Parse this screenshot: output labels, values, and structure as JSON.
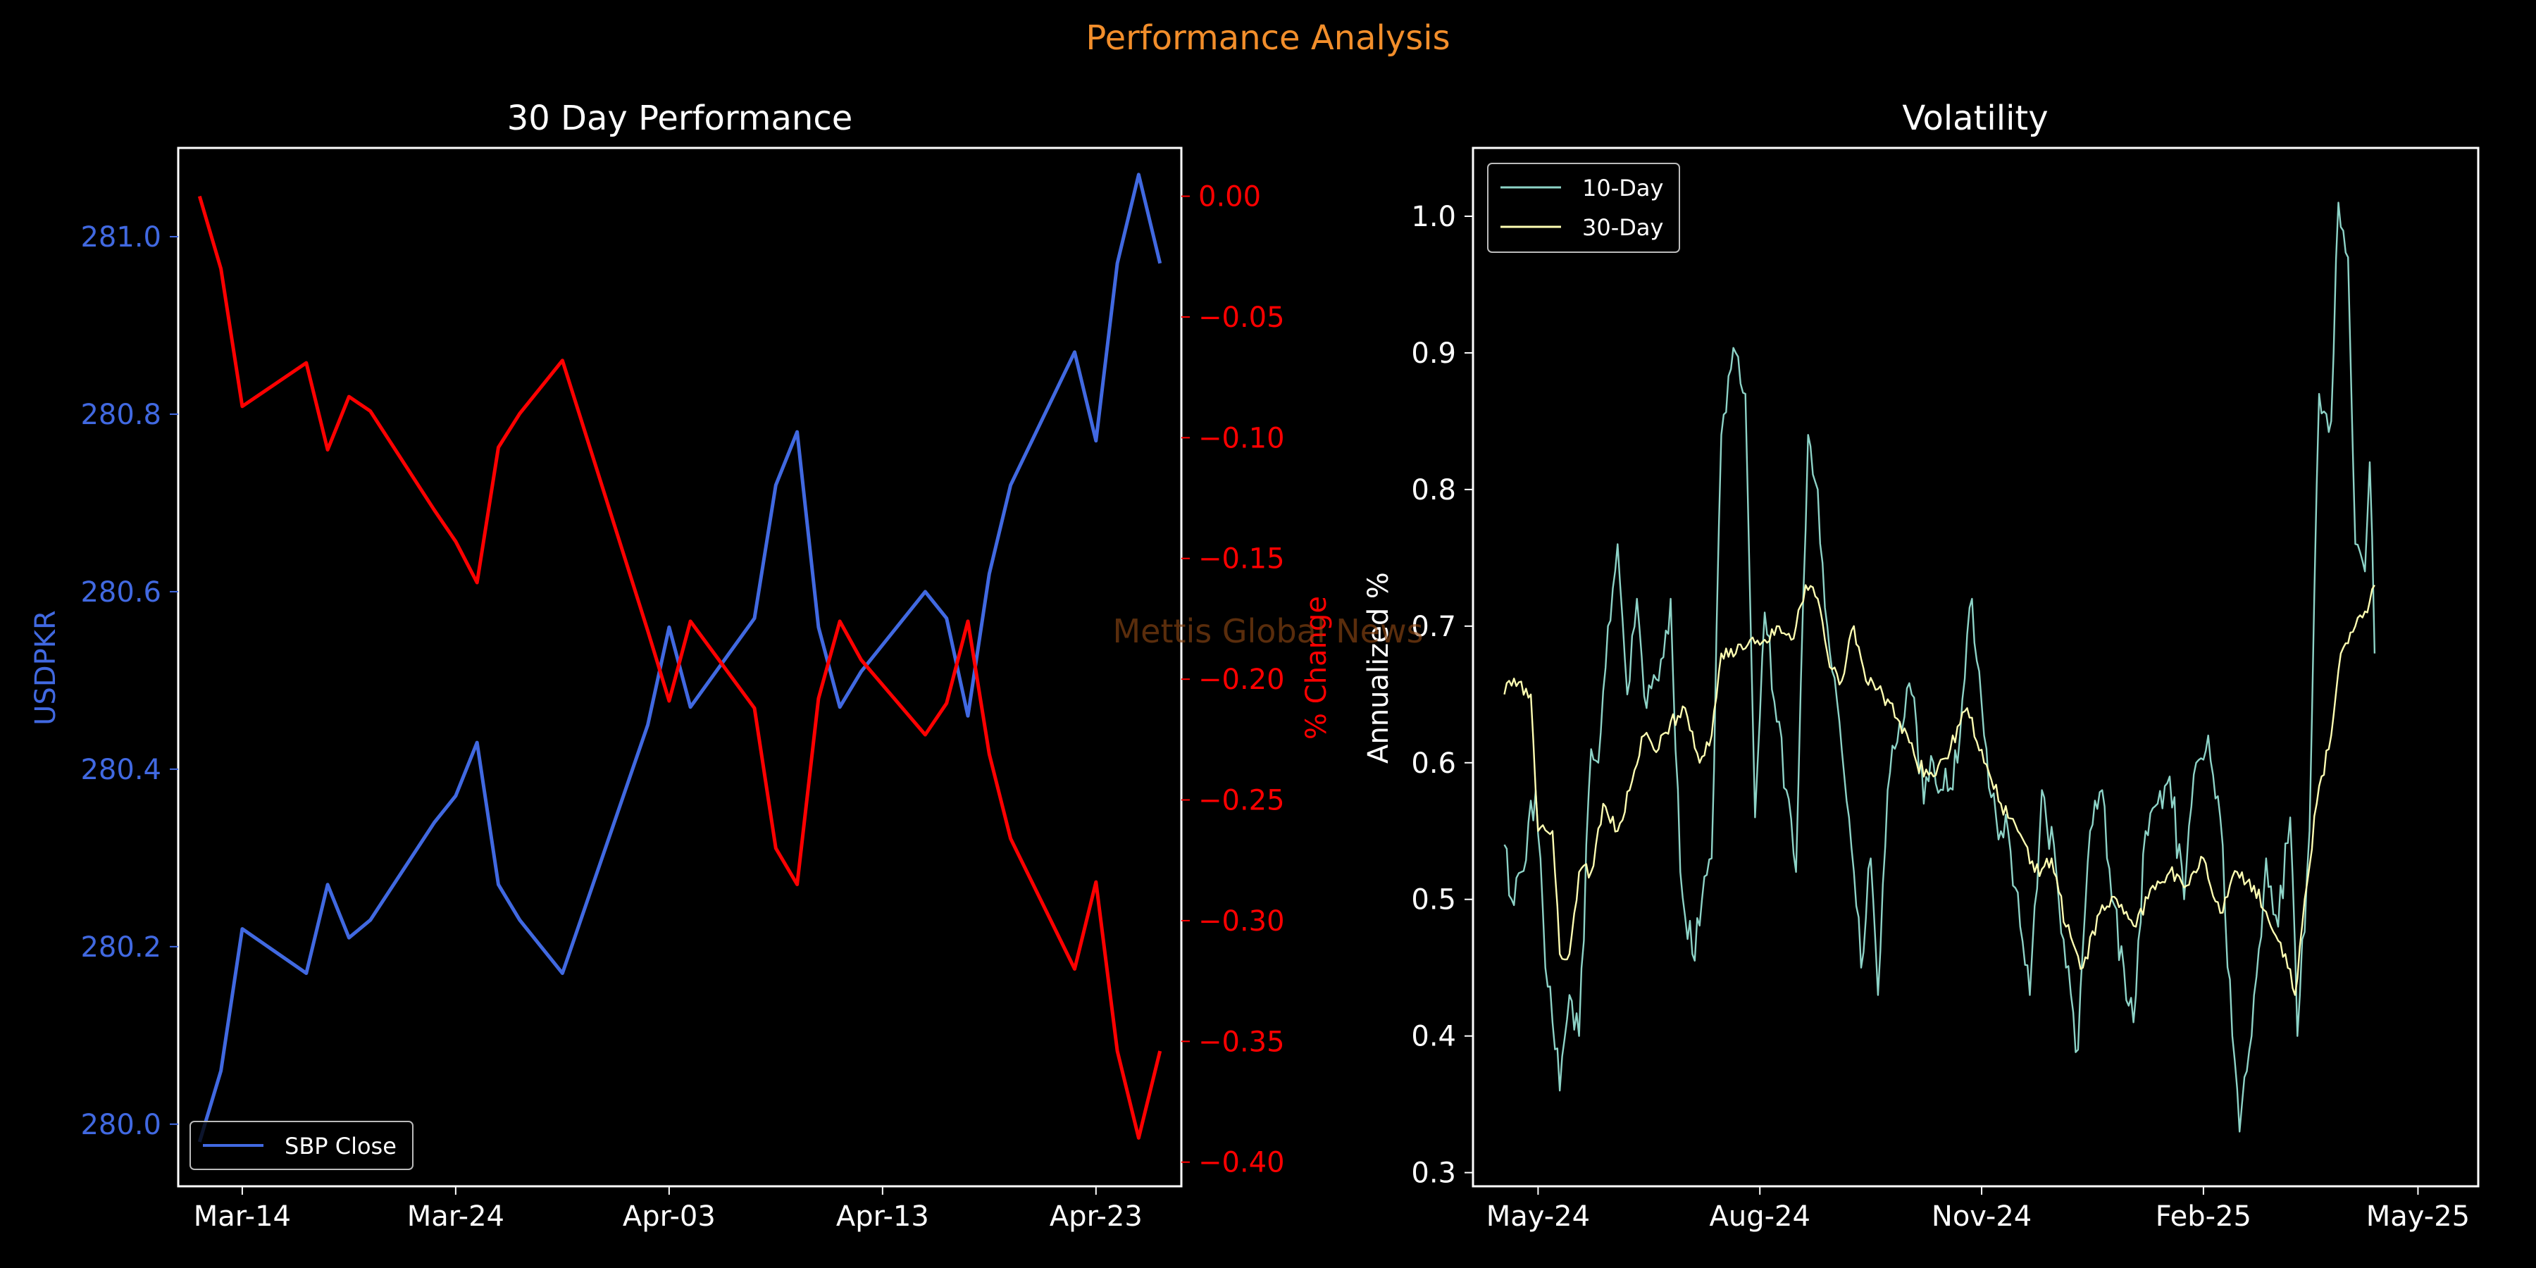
{
  "figure": {
    "title": "Performance Analysis",
    "watermark": "Mettis Global News"
  },
  "chart_data": [
    {
      "type": "line",
      "title": "30 Day Performance",
      "ylabel": "USDPKR",
      "y2label": "% Change",
      "x_ticks": [
        "Mar-14",
        "Mar-24",
        "Apr-03",
        "Apr-13",
        "Apr-23"
      ],
      "y_ticks": [
        "280.0",
        "280.2",
        "280.4",
        "280.6",
        "280.8",
        "281.0"
      ],
      "y2_ticks": [
        "0.00",
        "−0.05",
        "−0.10",
        "−0.15",
        "−0.20",
        "−0.25",
        "−0.30",
        "−0.35",
        "−0.40"
      ],
      "x_range": [
        "2024-03-11",
        "2024-04-27"
      ],
      "ylim": [
        279.93,
        281.1
      ],
      "y2lim": [
        -0.41,
        0.02
      ],
      "legend_position": "lower left",
      "dates": [
        "2024-03-12",
        "2024-03-13",
        "2024-03-14",
        "2024-03-17",
        "2024-03-18",
        "2024-03-19",
        "2024-03-20",
        "2024-03-23",
        "2024-03-24",
        "2024-03-25",
        "2024-03-26",
        "2024-03-27",
        "2024-03-29",
        "2024-04-02",
        "2024-04-03",
        "2024-04-04",
        "2024-04-07",
        "2024-04-08",
        "2024-04-09",
        "2024-04-10",
        "2024-04-11",
        "2024-04-12",
        "2024-04-15",
        "2024-04-16",
        "2024-04-17",
        "2024-04-18",
        "2024-04-19",
        "2024-04-22",
        "2024-04-23",
        "2024-04-24",
        "2024-04-25",
        "2024-04-26"
      ],
      "series": [
        {
          "name": "SBP Close",
          "axis": "left",
          "color": "#4169e1",
          "values": [
            279.98,
            280.06,
            280.22,
            280.17,
            280.27,
            280.21,
            280.23,
            280.34,
            280.37,
            280.43,
            280.27,
            280.23,
            280.17,
            280.45,
            280.56,
            280.47,
            280.57,
            280.72,
            280.78,
            280.56,
            280.47,
            280.51,
            280.6,
            280.57,
            280.46,
            280.62,
            280.72,
            280.87,
            280.77,
            280.97,
            281.07,
            280.97
          ]
        },
        {
          "name": "% Change",
          "axis": "right",
          "color": "#ff0000",
          "values": [
            0.0,
            -0.03,
            -0.087,
            -0.069,
            -0.105,
            -0.083,
            -0.089,
            -0.13,
            -0.143,
            -0.16,
            -0.104,
            -0.09,
            -0.068,
            -0.18,
            -0.209,
            -0.176,
            -0.212,
            -0.27,
            -0.285,
            -0.208,
            -0.176,
            -0.192,
            -0.223,
            -0.21,
            -0.176,
            -0.231,
            -0.266,
            -0.32,
            -0.284,
            -0.354,
            -0.39,
            -0.354
          ]
        }
      ]
    },
    {
      "type": "line",
      "title": "Volatility",
      "ylabel": "Annualized %",
      "x_ticks": [
        "May-24",
        "Aug-24",
        "Nov-24",
        "Feb-25",
        "May-25"
      ],
      "y_ticks": [
        "0.3",
        "0.4",
        "0.5",
        "0.6",
        "0.7",
        "0.8",
        "0.9",
        "1.0"
      ],
      "x_range": [
        "2024-04-04",
        "2025-05-26"
      ],
      "ylim": [
        0.29,
        1.05
      ],
      "legend_position": "upper left",
      "series": [
        {
          "name": "10-Day",
          "color": "#8dd3c7",
          "keypoints": [
            [
              "2024-04-17",
              0.54
            ],
            [
              "2024-04-20",
              0.5
            ],
            [
              "2024-04-24",
              0.52
            ],
            [
              "2024-04-30",
              0.58
            ],
            [
              "2024-05-04",
              0.45
            ],
            [
              "2024-05-07",
              0.41
            ],
            [
              "2024-05-10",
              0.36
            ],
            [
              "2024-05-14",
              0.43
            ],
            [
              "2024-05-18",
              0.4
            ],
            [
              "2024-05-23",
              0.61
            ],
            [
              "2024-05-26",
              0.6
            ],
            [
              "2024-05-30",
              0.7
            ],
            [
              "2024-06-03",
              0.76
            ],
            [
              "2024-06-07",
              0.65
            ],
            [
              "2024-06-11",
              0.72
            ],
            [
              "2024-06-15",
              0.64
            ],
            [
              "2024-06-20",
              0.66
            ],
            [
              "2024-06-25",
              0.72
            ],
            [
              "2024-06-29",
              0.52
            ],
            [
              "2024-07-04",
              0.46
            ],
            [
              "2024-07-08",
              0.5
            ],
            [
              "2024-07-12",
              0.53
            ],
            [
              "2024-07-16",
              0.84
            ],
            [
              "2024-07-22",
              0.9
            ],
            [
              "2024-07-26",
              0.87
            ],
            [
              "2024-07-30",
              0.56
            ],
            [
              "2024-08-03",
              0.71
            ],
            [
              "2024-08-08",
              0.63
            ],
            [
              "2024-08-12",
              0.58
            ],
            [
              "2024-08-16",
              0.52
            ],
            [
              "2024-08-21",
              0.84
            ],
            [
              "2024-08-25",
              0.8
            ],
            [
              "2024-08-29",
              0.7
            ],
            [
              "2024-09-03",
              0.63
            ],
            [
              "2024-09-07",
              0.56
            ],
            [
              "2024-09-12",
              0.45
            ],
            [
              "2024-09-16",
              0.53
            ],
            [
              "2024-09-19",
              0.43
            ],
            [
              "2024-09-23",
              0.58
            ],
            [
              "2024-09-28",
              0.63
            ],
            [
              "2024-10-03",
              0.65
            ],
            [
              "2024-10-08",
              0.57
            ],
            [
              "2024-10-12",
              0.6
            ],
            [
              "2024-10-16",
              0.58
            ],
            [
              "2024-10-22",
              0.6
            ],
            [
              "2024-10-28",
              0.72
            ],
            [
              "2024-11-02",
              0.62
            ],
            [
              "2024-11-07",
              0.56
            ],
            [
              "2024-11-12",
              0.55
            ],
            [
              "2024-11-17",
              0.48
            ],
            [
              "2024-11-21",
              0.43
            ],
            [
              "2024-11-26",
              0.58
            ],
            [
              "2024-12-02",
              0.52
            ],
            [
              "2024-12-06",
              0.45
            ],
            [
              "2024-12-11",
              0.39
            ],
            [
              "2024-12-16",
              0.55
            ],
            [
              "2024-12-21",
              0.58
            ],
            [
              "2024-12-25",
              0.5
            ],
            [
              "2024-12-30",
              0.45
            ],
            [
              "2025-01-03",
              0.41
            ],
            [
              "2025-01-08",
              0.55
            ],
            [
              "2025-01-13",
              0.57
            ],
            [
              "2025-01-18",
              0.59
            ],
            [
              "2025-01-24",
              0.5
            ],
            [
              "2025-01-29",
              0.6
            ],
            [
              "2025-02-03",
              0.62
            ],
            [
              "2025-02-08",
              0.56
            ],
            [
              "2025-02-13",
              0.4
            ],
            [
              "2025-02-16",
              0.33
            ],
            [
              "2025-02-21",
              0.4
            ],
            [
              "2025-02-27",
              0.53
            ],
            [
              "2025-03-04",
              0.48
            ],
            [
              "2025-03-09",
              0.56
            ],
            [
              "2025-03-12",
              0.4
            ],
            [
              "2025-03-17",
              0.55
            ],
            [
              "2025-03-21",
              0.87
            ],
            [
              "2025-03-26",
              0.85
            ],
            [
              "2025-03-29",
              1.01
            ],
            [
              "2025-04-02",
              0.97
            ],
            [
              "2025-04-05",
              0.76
            ],
            [
              "2025-04-09",
              0.74
            ],
            [
              "2025-04-11",
              0.82
            ],
            [
              "2025-04-13",
              0.68
            ]
          ]
        },
        {
          "name": "30-Day",
          "color": "#ffffb3",
          "keypoints": [
            [
              "2024-04-17",
              0.65
            ],
            [
              "2024-04-19",
              0.66
            ],
            [
              "2024-04-28",
              0.65
            ],
            [
              "2024-05-01",
              0.55
            ],
            [
              "2024-05-07",
              0.55
            ],
            [
              "2024-05-10",
              0.46
            ],
            [
              "2024-05-14",
              0.46
            ],
            [
              "2024-05-18",
              0.52
            ],
            [
              "2024-05-23",
              0.52
            ],
            [
              "2024-05-28",
              0.57
            ],
            [
              "2024-06-03",
              0.55
            ],
            [
              "2024-06-08",
              0.58
            ],
            [
              "2024-06-14",
              0.62
            ],
            [
              "2024-06-20",
              0.61
            ],
            [
              "2024-06-25",
              0.63
            ],
            [
              "2024-07-01",
              0.64
            ],
            [
              "2024-07-07",
              0.6
            ],
            [
              "2024-07-12",
              0.62
            ],
            [
              "2024-07-16",
              0.68
            ],
            [
              "2024-07-22",
              0.68
            ],
            [
              "2024-07-28",
              0.69
            ],
            [
              "2024-08-03",
              0.69
            ],
            [
              "2024-08-08",
              0.7
            ],
            [
              "2024-08-14",
              0.69
            ],
            [
              "2024-08-20",
              0.73
            ],
            [
              "2024-08-25",
              0.72
            ],
            [
              "2024-08-30",
              0.67
            ],
            [
              "2024-09-04",
              0.66
            ],
            [
              "2024-09-09",
              0.7
            ],
            [
              "2024-09-14",
              0.66
            ],
            [
              "2024-09-21",
              0.65
            ],
            [
              "2024-09-28",
              0.63
            ],
            [
              "2024-10-05",
              0.6
            ],
            [
              "2024-10-12",
              0.59
            ],
            [
              "2024-10-19",
              0.61
            ],
            [
              "2024-10-26",
              0.64
            ],
            [
              "2024-11-02",
              0.6
            ],
            [
              "2024-11-09",
              0.57
            ],
            [
              "2024-11-16",
              0.55
            ],
            [
              "2024-11-23",
              0.52
            ],
            [
              "2024-11-30",
              0.53
            ],
            [
              "2024-12-06",
              0.48
            ],
            [
              "2024-12-13",
              0.45
            ],
            [
              "2024-12-20",
              0.49
            ],
            [
              "2024-12-27",
              0.5
            ],
            [
              "2025-01-04",
              0.48
            ],
            [
              "2025-01-11",
              0.51
            ],
            [
              "2025-01-18",
              0.52
            ],
            [
              "2025-01-25",
              0.51
            ],
            [
              "2025-02-01",
              0.53
            ],
            [
              "2025-02-08",
              0.49
            ],
            [
              "2025-02-15",
              0.52
            ],
            [
              "2025-02-22",
              0.51
            ],
            [
              "2025-03-01",
              0.48
            ],
            [
              "2025-03-07",
              0.46
            ],
            [
              "2025-03-11",
              0.43
            ],
            [
              "2025-03-15",
              0.5
            ],
            [
              "2025-03-20",
              0.57
            ],
            [
              "2025-03-26",
              0.62
            ],
            [
              "2025-03-30",
              0.68
            ],
            [
              "2025-04-05",
              0.7
            ],
            [
              "2025-04-10",
              0.71
            ],
            [
              "2025-04-13",
              0.73
            ]
          ]
        }
      ]
    }
  ]
}
